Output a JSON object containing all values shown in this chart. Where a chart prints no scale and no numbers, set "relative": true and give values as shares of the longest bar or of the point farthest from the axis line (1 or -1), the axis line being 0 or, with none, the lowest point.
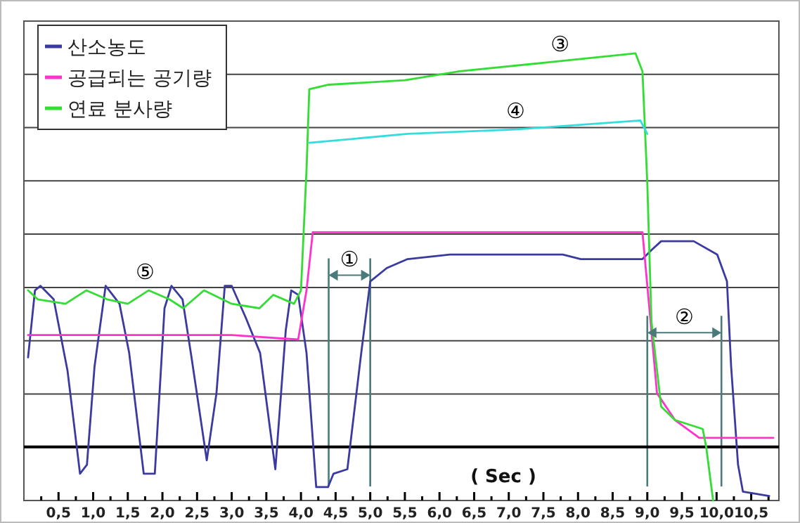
{
  "chart_data": {
    "type": "line",
    "relative": true,
    "xlabel": "( Sec )",
    "xlim": [
      0,
      10.9
    ],
    "xticks": [
      {
        "value": 0.25,
        "label": null
      },
      {
        "value": 0.5,
        "label": "0,5"
      },
      {
        "value": 0.75,
        "label": null
      },
      {
        "value": 1.0,
        "label": "1,0"
      },
      {
        "value": 1.25,
        "label": null
      },
      {
        "value": 1.5,
        "label": "1,5"
      },
      {
        "value": 1.75,
        "label": null
      },
      {
        "value": 2.0,
        "label": "2,0"
      },
      {
        "value": 2.25,
        "label": null
      },
      {
        "value": 2.5,
        "label": "2,5"
      },
      {
        "value": 2.75,
        "label": null
      },
      {
        "value": 3.0,
        "label": "3,0"
      },
      {
        "value": 3.25,
        "label": null
      },
      {
        "value": 3.5,
        "label": "3,5"
      },
      {
        "value": 3.75,
        "label": null
      },
      {
        "value": 4.0,
        "label": "4,0"
      },
      {
        "value": 4.25,
        "label": null
      },
      {
        "value": 4.5,
        "label": "4,5"
      },
      {
        "value": 4.75,
        "label": null
      },
      {
        "value": 5.0,
        "label": "5,0"
      },
      {
        "value": 5.25,
        "label": null
      },
      {
        "value": 5.5,
        "label": "5,5"
      },
      {
        "value": 5.75,
        "label": null
      },
      {
        "value": 6.0,
        "label": "6,0"
      },
      {
        "value": 6.25,
        "label": null
      },
      {
        "value": 6.5,
        "label": "6,5"
      },
      {
        "value": 6.75,
        "label": null
      },
      {
        "value": 7.0,
        "label": "7,0"
      },
      {
        "value": 7.25,
        "label": null
      },
      {
        "value": 7.5,
        "label": "7,5"
      },
      {
        "value": 7.75,
        "label": null
      },
      {
        "value": 8.0,
        "label": "8,0"
      },
      {
        "value": 8.25,
        "label": null
      },
      {
        "value": 8.5,
        "label": "8,5"
      },
      {
        "value": 8.75,
        "label": null
      },
      {
        "value": 9.0,
        "label": "9,0"
      },
      {
        "value": 9.25,
        "label": null
      },
      {
        "value": 9.5,
        "label": "9,5"
      },
      {
        "value": 9.75,
        "label": null
      },
      {
        "value": 10.0,
        "label": "10,0"
      },
      {
        "value": 10.25,
        "label": null
      },
      {
        "value": 10.5,
        "label": "10,5"
      },
      {
        "value": 10.75,
        "label": null
      }
    ],
    "grid": "y",
    "legend": "top left",
    "marker": "none",
    "line_style": "solid",
    "series": [
      {
        "name": "산소농도",
        "color": "#3a3aa0",
        "x": [
          0.06,
          0.16,
          0.24,
          0.43,
          0.63,
          0.81,
          0.91,
          1.02,
          1.18,
          1.38,
          1.52,
          1.73,
          1.89,
          2.03,
          2.13,
          2.29,
          2.42,
          2.64,
          2.78,
          2.9,
          3.0,
          3.2,
          3.41,
          3.63,
          3.78,
          3.86,
          3.96,
          4.08,
          4.22,
          4.39,
          4.47,
          4.67,
          4.87,
          5.0,
          5.24,
          5.54,
          6.15,
          7.78,
          8.04,
          8.93,
          9.06,
          9.2,
          9.67,
          10.01,
          10.15,
          10.21,
          10.31,
          10.38,
          10.76
        ],
        "values": [
          0.32,
          0.47,
          0.48,
          0.45,
          0.29,
          0.06,
          0.08,
          0.3,
          0.48,
          0.44,
          0.33,
          0.06,
          0.06,
          0.43,
          0.48,
          0.45,
          0.32,
          0.09,
          0.24,
          0.48,
          0.48,
          0.41,
          0.33,
          0.07,
          0.38,
          0.47,
          0.46,
          0.33,
          0.03,
          0.03,
          0.06,
          0.07,
          0.33,
          0.49,
          0.52,
          0.54,
          0.55,
          0.55,
          0.54,
          0.54,
          0.56,
          0.58,
          0.58,
          0.55,
          0.49,
          0.3,
          0.08,
          0.02,
          0.01
        ]
      },
      {
        "name": "공급되는 공기량",
        "color": "#ff33cc",
        "x": [
          0.06,
          1.0,
          2.0,
          3.0,
          3.96,
          4.08,
          4.17,
          8.93,
          9.03,
          9.14,
          9.4,
          9.75,
          10.82
        ],
        "values": [
          0.37,
          0.37,
          0.37,
          0.37,
          0.36,
          0.47,
          0.6,
          0.6,
          0.43,
          0.24,
          0.18,
          0.14,
          0.14
        ]
      },
      {
        "name": "연료 분사량",
        "color": "#33dd33",
        "x": [
          0.06,
          0.2,
          0.6,
          0.9,
          1.2,
          1.5,
          1.8,
          2.1,
          2.3,
          2.6,
          3.0,
          3.4,
          3.6,
          3.9,
          4.0,
          4.08,
          4.12,
          4.4,
          5.5,
          6.29,
          7.57,
          8.83,
          8.93,
          9.0,
          9.06,
          9.2,
          9.4,
          9.8,
          9.85,
          9.95
        ],
        "values": [
          0.47,
          0.45,
          0.44,
          0.47,
          0.45,
          0.44,
          0.47,
          0.45,
          0.43,
          0.47,
          0.44,
          0.43,
          0.46,
          0.44,
          0.47,
          0.74,
          0.92,
          0.93,
          0.94,
          0.96,
          0.98,
          1.0,
          0.96,
          0.71,
          0.4,
          0.21,
          0.18,
          0.16,
          0.12,
          0.0
        ]
      },
      {
        "color": "#33dddd",
        "x": [
          4.12,
          5.54,
          7.1,
          8.9,
          9.0
        ],
        "values": [
          0.8,
          0.82,
          0.83,
          0.85,
          0.82
        ]
      }
    ],
    "ref_lines": [
      {
        "axis": "x",
        "value": 4.4,
        "color": "#4a7a7a"
      },
      {
        "axis": "x",
        "value": 5.0,
        "color": "#4a7a7a"
      },
      {
        "axis": "x",
        "value": 9.0,
        "color": "#4a7a7a"
      },
      {
        "axis": "x",
        "value": 10.07,
        "color": "#4a7a7a"
      },
      {
        "axis": "y",
        "value": 0.12,
        "color": "#000000"
      }
    ],
    "annotations": [
      "①",
      "②",
      {
        "text": "③",
        "x": 7.74,
        "y": 0.98
      },
      {
        "text": "④",
        "x": 7.1,
        "y": 0.83
      },
      {
        "text": "⑤",
        "x": 1.75,
        "y": 0.47
      }
    ]
  }
}
